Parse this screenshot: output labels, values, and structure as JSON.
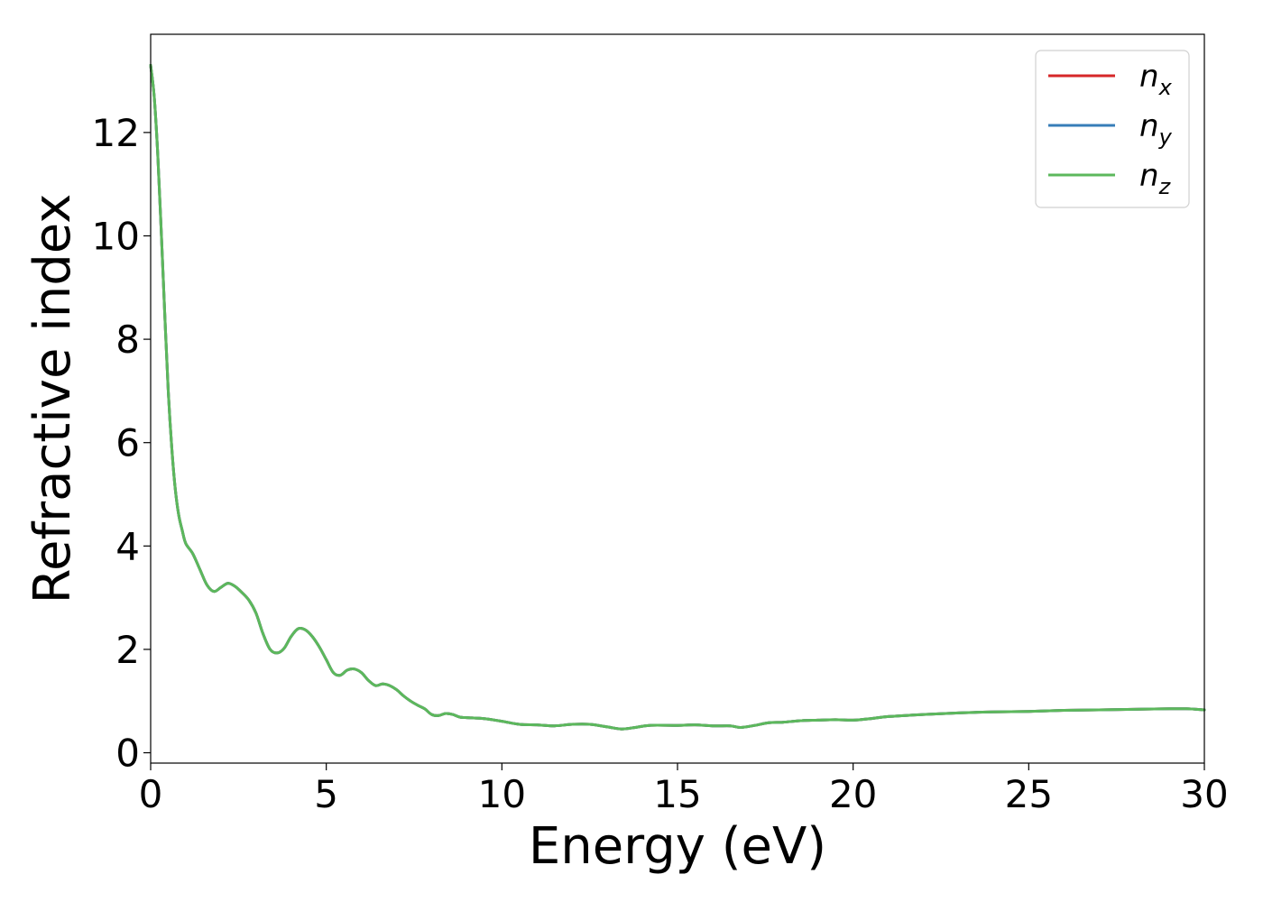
{
  "chart_data": {
    "type": "line",
    "xlabel": "Energy (eV)",
    "ylabel": "Refractive index",
    "xlim": [
      0,
      30
    ],
    "ylim": [
      -0.2,
      13.9
    ],
    "xticks": [
      0,
      5,
      10,
      15,
      20,
      25,
      30
    ],
    "yticks": [
      0,
      2,
      4,
      6,
      8,
      10,
      12
    ],
    "grid": false,
    "legend_position": "top-right",
    "x": [
      0,
      0.1,
      0.2,
      0.3,
      0.4,
      0.5,
      0.6,
      0.7,
      0.8,
      0.9,
      1.0,
      1.2,
      1.4,
      1.6,
      1.8,
      2.0,
      2.2,
      2.4,
      2.6,
      2.8,
      3.0,
      3.2,
      3.4,
      3.6,
      3.8,
      4.0,
      4.2,
      4.4,
      4.6,
      4.8,
      5.0,
      5.2,
      5.4,
      5.6,
      5.8,
      6.0,
      6.2,
      6.4,
      6.6,
      6.8,
      7.0,
      7.2,
      7.4,
      7.6,
      7.8,
      8.0,
      8.2,
      8.4,
      8.6,
      8.8,
      9.0,
      9.5,
      10.0,
      10.5,
      11.0,
      11.5,
      12.0,
      12.5,
      13.0,
      13.4,
      13.8,
      14.2,
      15.0,
      15.5,
      16.0,
      16.5,
      16.8,
      17.2,
      17.6,
      18.0,
      18.5,
      19.0,
      19.5,
      20.0,
      20.5,
      21.0,
      22.0,
      23.0,
      24.0,
      25.0,
      26.0,
      27.0,
      28.0,
      29.0,
      29.5,
      30.0
    ],
    "series": [
      {
        "name": "n_x",
        "label_base": "n",
        "label_sub": "x",
        "color": "#d62728",
        "values": [
          13.3,
          12.7,
          11.6,
          10.1,
          8.5,
          7.0,
          5.9,
          5.1,
          4.6,
          4.3,
          4.05,
          3.85,
          3.55,
          3.25,
          3.12,
          3.2,
          3.28,
          3.22,
          3.1,
          2.95,
          2.7,
          2.3,
          2.0,
          1.93,
          2.02,
          2.25,
          2.4,
          2.38,
          2.25,
          2.05,
          1.8,
          1.55,
          1.5,
          1.6,
          1.62,
          1.55,
          1.4,
          1.3,
          1.33,
          1.3,
          1.22,
          1.1,
          1.0,
          0.92,
          0.85,
          0.74,
          0.72,
          0.76,
          0.74,
          0.69,
          0.68,
          0.66,
          0.61,
          0.55,
          0.54,
          0.52,
          0.55,
          0.55,
          0.5,
          0.46,
          0.49,
          0.53,
          0.53,
          0.54,
          0.52,
          0.52,
          0.49,
          0.53,
          0.58,
          0.59,
          0.62,
          0.63,
          0.64,
          0.63,
          0.66,
          0.7,
          0.74,
          0.77,
          0.79,
          0.8,
          0.82,
          0.83,
          0.84,
          0.85,
          0.85,
          0.83
        ]
      },
      {
        "name": "n_y",
        "label_base": "n",
        "label_sub": "y",
        "color": "#377eb8",
        "values": [
          13.3,
          12.7,
          11.6,
          10.1,
          8.5,
          7.0,
          5.9,
          5.1,
          4.6,
          4.3,
          4.05,
          3.85,
          3.55,
          3.25,
          3.12,
          3.2,
          3.28,
          3.22,
          3.1,
          2.95,
          2.7,
          2.3,
          2.0,
          1.93,
          2.02,
          2.25,
          2.4,
          2.38,
          2.25,
          2.05,
          1.8,
          1.55,
          1.5,
          1.6,
          1.62,
          1.55,
          1.4,
          1.3,
          1.33,
          1.3,
          1.22,
          1.1,
          1.0,
          0.92,
          0.85,
          0.74,
          0.72,
          0.76,
          0.74,
          0.69,
          0.68,
          0.66,
          0.61,
          0.55,
          0.54,
          0.52,
          0.55,
          0.55,
          0.5,
          0.46,
          0.49,
          0.53,
          0.53,
          0.54,
          0.52,
          0.52,
          0.49,
          0.53,
          0.58,
          0.59,
          0.62,
          0.63,
          0.64,
          0.63,
          0.66,
          0.7,
          0.74,
          0.77,
          0.79,
          0.8,
          0.82,
          0.83,
          0.84,
          0.85,
          0.85,
          0.83
        ]
      },
      {
        "name": "n_z",
        "label_base": "n",
        "label_sub": "z",
        "color": "#5cb85c",
        "values": [
          13.3,
          12.7,
          11.6,
          10.1,
          8.5,
          7.0,
          5.9,
          5.1,
          4.6,
          4.3,
          4.05,
          3.85,
          3.55,
          3.25,
          3.12,
          3.2,
          3.28,
          3.22,
          3.1,
          2.95,
          2.7,
          2.3,
          2.0,
          1.93,
          2.02,
          2.25,
          2.4,
          2.38,
          2.25,
          2.05,
          1.8,
          1.55,
          1.5,
          1.6,
          1.62,
          1.55,
          1.4,
          1.3,
          1.33,
          1.3,
          1.22,
          1.1,
          1.0,
          0.92,
          0.85,
          0.74,
          0.72,
          0.76,
          0.74,
          0.69,
          0.68,
          0.66,
          0.61,
          0.55,
          0.54,
          0.52,
          0.55,
          0.55,
          0.5,
          0.46,
          0.49,
          0.53,
          0.53,
          0.54,
          0.52,
          0.52,
          0.49,
          0.53,
          0.58,
          0.59,
          0.62,
          0.63,
          0.64,
          0.63,
          0.66,
          0.7,
          0.74,
          0.77,
          0.79,
          0.8,
          0.82,
          0.83,
          0.84,
          0.85,
          0.85,
          0.83
        ]
      }
    ]
  }
}
